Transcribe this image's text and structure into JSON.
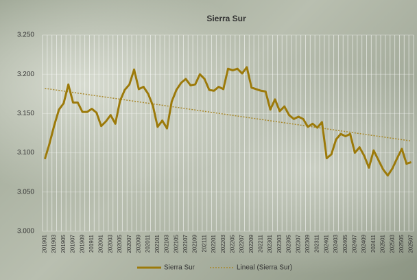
{
  "chart_data": {
    "type": "line",
    "title": "Sierra Sur",
    "categories": [
      "201901",
      null,
      "201903",
      null,
      "201905",
      null,
      "201907",
      null,
      "201909",
      null,
      "201911",
      null,
      "202001",
      null,
      "202003",
      null,
      "202005",
      null,
      "202007",
      null,
      "202009",
      null,
      "202011",
      null,
      "202101",
      null,
      "202103",
      null,
      "202105",
      null,
      "202107",
      null,
      "202109",
      null,
      "202111",
      null,
      "202201",
      null,
      "202203",
      null,
      "202205",
      null,
      "202207",
      null,
      "202209",
      null,
      "202211",
      null,
      "202301",
      null,
      "202303",
      null,
      "202305",
      null,
      "202307",
      null,
      "202309",
      null,
      "202311",
      null,
      "202401",
      null,
      "202403",
      null,
      "202405",
      null,
      "202407",
      null,
      "202409",
      null,
      "202411",
      null,
      "202501",
      null,
      "202503",
      null,
      "202505",
      null,
      "202507"
    ],
    "series": [
      {
        "name": "Sierra Sur",
        "color": "#9c7a0a",
        "values": [
          3.092,
          3.112,
          3.135,
          3.155,
          3.163,
          3.187,
          3.164,
          3.164,
          3.152,
          3.152,
          3.156,
          3.151,
          3.134,
          3.14,
          3.148,
          3.137,
          3.166,
          3.18,
          3.187,
          3.206,
          3.181,
          3.184,
          3.175,
          3.16,
          3.133,
          3.141,
          3.131,
          3.165,
          3.18,
          3.189,
          3.194,
          3.186,
          3.187,
          3.2,
          3.194,
          3.18,
          3.179,
          3.184,
          3.181,
          3.207,
          3.205,
          3.207,
          3.201,
          3.209,
          3.183,
          3.181,
          3.179,
          3.178,
          3.155,
          3.168,
          3.153,
          3.159,
          3.148,
          3.143,
          3.146,
          3.143,
          3.133,
          3.137,
          3.132,
          3.139,
          3.093,
          3.098,
          3.117,
          3.124,
          3.121,
          3.124,
          3.1,
          3.107,
          3.096,
          3.081,
          3.103,
          3.091,
          3.079,
          3.071,
          3.08,
          3.093,
          3.105,
          3.086,
          3.088
        ]
      }
    ],
    "trendline": {
      "name": "Lineal (Sierra Sur)",
      "color": "#a8882a",
      "start": 3.182,
      "end": 3.115
    },
    "ylim": [
      3.0,
      3.25
    ],
    "yticks": [
      {
        "value": 3.0,
        "label": "3.000"
      },
      {
        "value": 3.05,
        "label": "3.050"
      },
      {
        "value": 3.1,
        "label": "3.100"
      },
      {
        "value": 3.15,
        "label": "3.150"
      },
      {
        "value": 3.2,
        "label": "3.200"
      },
      {
        "value": 3.25,
        "label": "3.250"
      }
    ],
    "legend": "bottom"
  }
}
